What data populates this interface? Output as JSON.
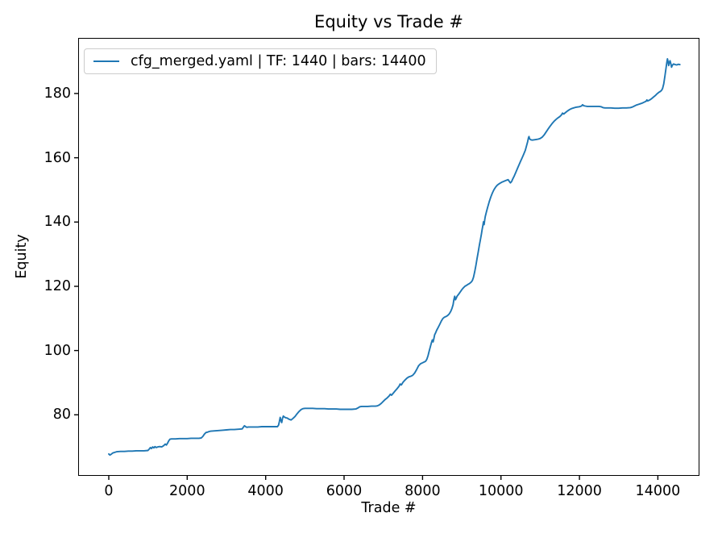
{
  "figure": {
    "title": "Equity vs Trade #",
    "xlabel": "Trade #",
    "ylabel": "Equity",
    "legend": {
      "label": "cfg_merged.yaml | TF: 1440 | bars: 14400",
      "line_color": "#1f77b4",
      "position": "upper left"
    }
  },
  "chart_data": {
    "type": "line",
    "title": "Equity vs Trade #",
    "xlabel": "Trade #",
    "ylabel": "Equity",
    "grid": false,
    "legend_position": "upper left",
    "xlim": [
      -780,
      15060
    ],
    "ylim": [
      61,
      197.3
    ],
    "xticks": [
      0,
      2000,
      4000,
      6000,
      8000,
      10000,
      12000,
      14000
    ],
    "yticks": [
      80,
      100,
      120,
      140,
      160,
      180
    ],
    "xtick_labels": [
      "0",
      "2000",
      "4000",
      "6000",
      "8000",
      "10000",
      "12000",
      "14000"
    ],
    "ytick_labels": [
      "80",
      "100",
      "120",
      "140",
      "160",
      "180"
    ],
    "series": [
      {
        "name": "cfg_merged.yaml | TF: 1440 | bars: 14400",
        "color": "#1f77b4",
        "points": [
          [
            0,
            67.8
          ],
          [
            30,
            67.5
          ],
          [
            60,
            67.7
          ],
          [
            100,
            68.1
          ],
          [
            150,
            68.3
          ],
          [
            200,
            68.5
          ],
          [
            300,
            68.6
          ],
          [
            400,
            68.6
          ],
          [
            500,
            68.7
          ],
          [
            600,
            68.7
          ],
          [
            700,
            68.8
          ],
          [
            800,
            68.8
          ],
          [
            900,
            68.8
          ],
          [
            1000,
            68.9
          ],
          [
            1030,
            69.3
          ],
          [
            1060,
            69.8
          ],
          [
            1090,
            69.5
          ],
          [
            1120,
            70.0
          ],
          [
            1150,
            69.7
          ],
          [
            1180,
            70.1
          ],
          [
            1210,
            69.8
          ],
          [
            1250,
            70.0
          ],
          [
            1300,
            70.1
          ],
          [
            1350,
            70.0
          ],
          [
            1400,
            70.4
          ],
          [
            1440,
            70.9
          ],
          [
            1470,
            70.6
          ],
          [
            1500,
            71.2
          ],
          [
            1530,
            71.9
          ],
          [
            1560,
            72.4
          ],
          [
            1600,
            72.5
          ],
          [
            1700,
            72.5
          ],
          [
            1800,
            72.6
          ],
          [
            1900,
            72.6
          ],
          [
            2000,
            72.6
          ],
          [
            2100,
            72.7
          ],
          [
            2200,
            72.7
          ],
          [
            2300,
            72.7
          ],
          [
            2360,
            72.8
          ],
          [
            2400,
            73.3
          ],
          [
            2440,
            74.0
          ],
          [
            2480,
            74.5
          ],
          [
            2520,
            74.6
          ],
          [
            2560,
            74.8
          ],
          [
            2600,
            74.9
          ],
          [
            2700,
            75.0
          ],
          [
            2800,
            75.1
          ],
          [
            2900,
            75.2
          ],
          [
            3000,
            75.3
          ],
          [
            3100,
            75.4
          ],
          [
            3200,
            75.4
          ],
          [
            3300,
            75.5
          ],
          [
            3400,
            75.6
          ],
          [
            3430,
            76.1
          ],
          [
            3460,
            76.6
          ],
          [
            3490,
            76.3
          ],
          [
            3520,
            76.1
          ],
          [
            3560,
            76.2
          ],
          [
            3600,
            76.2
          ],
          [
            3700,
            76.2
          ],
          [
            3800,
            76.2
          ],
          [
            3900,
            76.3
          ],
          [
            4000,
            76.3
          ],
          [
            4100,
            76.3
          ],
          [
            4200,
            76.3
          ],
          [
            4300,
            76.3
          ],
          [
            4330,
            76.8
          ],
          [
            4350,
            77.9
          ],
          [
            4370,
            79.2
          ],
          [
            4390,
            78.3
          ],
          [
            4410,
            77.6
          ],
          [
            4430,
            78.9
          ],
          [
            4450,
            79.6
          ],
          [
            4480,
            79.3
          ],
          [
            4510,
            79.1
          ],
          [
            4550,
            79.0
          ],
          [
            4600,
            78.6
          ],
          [
            4650,
            78.4
          ],
          [
            4700,
            78.9
          ],
          [
            4750,
            79.5
          ],
          [
            4800,
            80.3
          ],
          [
            4850,
            81.0
          ],
          [
            4900,
            81.6
          ],
          [
            4950,
            81.9
          ],
          [
            5000,
            82.0
          ],
          [
            5100,
            82.0
          ],
          [
            5200,
            82.0
          ],
          [
            5300,
            81.9
          ],
          [
            5400,
            81.9
          ],
          [
            5500,
            81.9
          ],
          [
            5600,
            81.8
          ],
          [
            5700,
            81.8
          ],
          [
            5800,
            81.8
          ],
          [
            5900,
            81.7
          ],
          [
            6000,
            81.7
          ],
          [
            6100,
            81.7
          ],
          [
            6200,
            81.7
          ],
          [
            6300,
            81.8
          ],
          [
            6350,
            82.1
          ],
          [
            6400,
            82.5
          ],
          [
            6450,
            82.6
          ],
          [
            6500,
            82.6
          ],
          [
            6600,
            82.6
          ],
          [
            6700,
            82.7
          ],
          [
            6800,
            82.7
          ],
          [
            6850,
            82.8
          ],
          [
            6900,
            83.1
          ],
          [
            6950,
            83.6
          ],
          [
            7000,
            84.2
          ],
          [
            7050,
            84.8
          ],
          [
            7100,
            85.3
          ],
          [
            7150,
            85.9
          ],
          [
            7180,
            86.4
          ],
          [
            7210,
            86.1
          ],
          [
            7250,
            86.7
          ],
          [
            7300,
            87.4
          ],
          [
            7350,
            88.1
          ],
          [
            7400,
            88.9
          ],
          [
            7430,
            89.6
          ],
          [
            7460,
            89.3
          ],
          [
            7500,
            90.1
          ],
          [
            7550,
            90.8
          ],
          [
            7600,
            91.4
          ],
          [
            7650,
            91.8
          ],
          [
            7700,
            92.0
          ],
          [
            7750,
            92.3
          ],
          [
            7800,
            93.0
          ],
          [
            7850,
            94.1
          ],
          [
            7900,
            95.3
          ],
          [
            7950,
            95.9
          ],
          [
            8000,
            96.2
          ],
          [
            8050,
            96.5
          ],
          [
            8080,
            96.7
          ],
          [
            8110,
            97.3
          ],
          [
            8140,
            98.4
          ],
          [
            8170,
            99.8
          ],
          [
            8200,
            101.2
          ],
          [
            8230,
            102.6
          ],
          [
            8250,
            103.3
          ],
          [
            8270,
            102.7
          ],
          [
            8290,
            103.8
          ],
          [
            8310,
            104.9
          ],
          [
            8330,
            105.4
          ],
          [
            8360,
            106.3
          ],
          [
            8400,
            107.2
          ],
          [
            8440,
            108.2
          ],
          [
            8480,
            109.2
          ],
          [
            8520,
            110.0
          ],
          [
            8560,
            110.4
          ],
          [
            8600,
            110.6
          ],
          [
            8640,
            110.9
          ],
          [
            8680,
            111.4
          ],
          [
            8720,
            112.2
          ],
          [
            8750,
            113.1
          ],
          [
            8780,
            114.3
          ],
          [
            8800,
            115.9
          ],
          [
            8820,
            116.9
          ],
          [
            8840,
            115.8
          ],
          [
            8860,
            116.3
          ],
          [
            8880,
            116.9
          ],
          [
            8920,
            117.5
          ],
          [
            8960,
            118.2
          ],
          [
            9000,
            118.9
          ],
          [
            9040,
            119.5
          ],
          [
            9080,
            120.0
          ],
          [
            9120,
            120.3
          ],
          [
            9160,
            120.6
          ],
          [
            9200,
            120.9
          ],
          [
            9240,
            121.3
          ],
          [
            9270,
            121.8
          ],
          [
            9300,
            122.8
          ],
          [
            9330,
            124.5
          ],
          [
            9360,
            126.5
          ],
          [
            9390,
            128.6
          ],
          [
            9420,
            130.7
          ],
          [
            9450,
            132.8
          ],
          [
            9480,
            134.8
          ],
          [
            9500,
            136.2
          ],
          [
            9520,
            137.6
          ],
          [
            9540,
            139.0
          ],
          [
            9555,
            140.1
          ],
          [
            9570,
            139.2
          ],
          [
            9585,
            140.6
          ],
          [
            9600,
            141.7
          ],
          [
            9630,
            143.2
          ],
          [
            9660,
            144.6
          ],
          [
            9700,
            146.3
          ],
          [
            9740,
            147.8
          ],
          [
            9780,
            149.0
          ],
          [
            9820,
            150.0
          ],
          [
            9860,
            150.8
          ],
          [
            9900,
            151.4
          ],
          [
            9940,
            151.8
          ],
          [
            9980,
            152.1
          ],
          [
            10020,
            152.4
          ],
          [
            10060,
            152.6
          ],
          [
            10100,
            152.8
          ],
          [
            10140,
            153.0
          ],
          [
            10180,
            153.2
          ],
          [
            10210,
            152.7
          ],
          [
            10240,
            152.2
          ],
          [
            10270,
            152.6
          ],
          [
            10300,
            153.4
          ],
          [
            10340,
            154.4
          ],
          [
            10380,
            155.5
          ],
          [
            10420,
            156.7
          ],
          [
            10460,
            157.8
          ],
          [
            10500,
            158.9
          ],
          [
            10540,
            160.0
          ],
          [
            10580,
            161.1
          ],
          [
            10620,
            162.3
          ],
          [
            10650,
            163.6
          ],
          [
            10680,
            165.0
          ],
          [
            10700,
            166.2
          ],
          [
            10715,
            166.6
          ],
          [
            10730,
            165.9
          ],
          [
            10760,
            165.6
          ],
          [
            10800,
            165.5
          ],
          [
            10850,
            165.6
          ],
          [
            10900,
            165.7
          ],
          [
            10950,
            165.8
          ],
          [
            11000,
            166.0
          ],
          [
            11050,
            166.4
          ],
          [
            11100,
            167.1
          ],
          [
            11150,
            168.0
          ],
          [
            11200,
            168.9
          ],
          [
            11250,
            169.8
          ],
          [
            11300,
            170.6
          ],
          [
            11350,
            171.3
          ],
          [
            11400,
            171.9
          ],
          [
            11450,
            172.4
          ],
          [
            11500,
            172.8
          ],
          [
            11540,
            173.3
          ],
          [
            11570,
            173.9
          ],
          [
            11600,
            173.6
          ],
          [
            11650,
            174.1
          ],
          [
            11700,
            174.6
          ],
          [
            11750,
            175.0
          ],
          [
            11800,
            175.3
          ],
          [
            11850,
            175.5
          ],
          [
            11900,
            175.7
          ],
          [
            11950,
            175.8
          ],
          [
            12000,
            175.9
          ],
          [
            12050,
            176.1
          ],
          [
            12080,
            176.5
          ],
          [
            12110,
            176.2
          ],
          [
            12150,
            176.1
          ],
          [
            12200,
            176.0
          ],
          [
            12300,
            176.0
          ],
          [
            12400,
            176.0
          ],
          [
            12500,
            176.0
          ],
          [
            12550,
            175.9
          ],
          [
            12600,
            175.6
          ],
          [
            12650,
            175.5
          ],
          [
            12700,
            175.5
          ],
          [
            12800,
            175.5
          ],
          [
            12900,
            175.4
          ],
          [
            13000,
            175.4
          ],
          [
            13100,
            175.5
          ],
          [
            13200,
            175.5
          ],
          [
            13300,
            175.6
          ],
          [
            13350,
            175.8
          ],
          [
            13400,
            176.1
          ],
          [
            13450,
            176.4
          ],
          [
            13500,
            176.6
          ],
          [
            13550,
            176.8
          ],
          [
            13600,
            177.0
          ],
          [
            13650,
            177.3
          ],
          [
            13700,
            177.6
          ],
          [
            13720,
            178.0
          ],
          [
            13740,
            177.7
          ],
          [
            13780,
            177.9
          ],
          [
            13820,
            178.2
          ],
          [
            13860,
            178.6
          ],
          [
            13900,
            179.0
          ],
          [
            13940,
            179.4
          ],
          [
            13970,
            179.8
          ],
          [
            14000,
            180.1
          ],
          [
            14030,
            180.4
          ],
          [
            14060,
            180.6
          ],
          [
            14090,
            180.9
          ],
          [
            14120,
            181.5
          ],
          [
            14150,
            183.0
          ],
          [
            14180,
            185.5
          ],
          [
            14210,
            188.0
          ],
          [
            14230,
            189.8
          ],
          [
            14245,
            190.8
          ],
          [
            14260,
            189.9
          ],
          [
            14275,
            188.7
          ],
          [
            14290,
            189.5
          ],
          [
            14310,
            190.2
          ],
          [
            14330,
            189.3
          ],
          [
            14350,
            188.2
          ],
          [
            14370,
            188.8
          ],
          [
            14400,
            189.2
          ],
          [
            14440,
            189.0
          ],
          [
            14480,
            188.9
          ],
          [
            14520,
            189.1
          ],
          [
            14560,
            189.0
          ]
        ]
      }
    ]
  }
}
